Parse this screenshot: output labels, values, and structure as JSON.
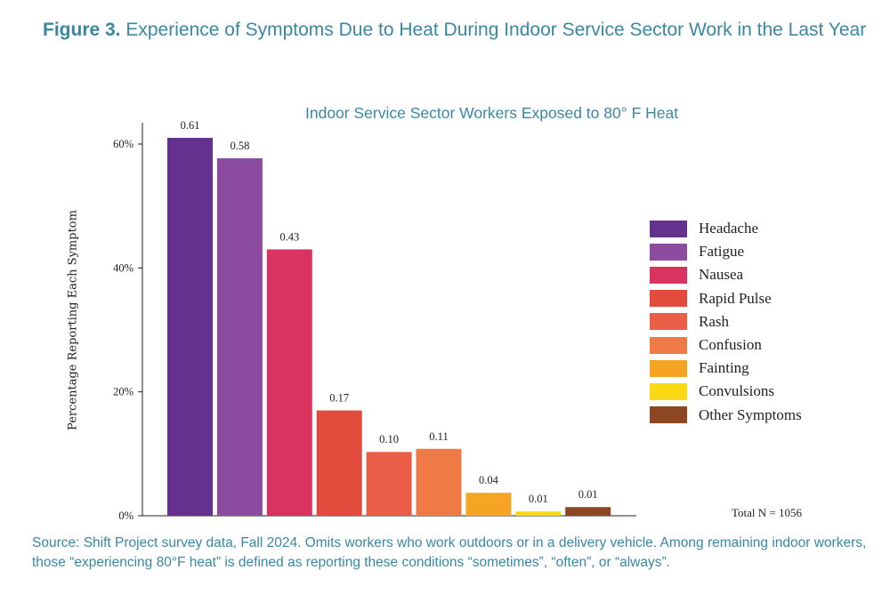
{
  "figure": {
    "title_lead": "Figure 3.",
    "title_rest": " Experience of Symptoms Due to Heat During Indoor Service Sector Work in the Last Year",
    "source_line1": "Source: Shift Project survey data, Fall 2024. Omits workers who work outdoors or in a delivery vehicle. Among remaining indoor workers,",
    "source_line2": "those “experiencing 80°F heat” is defined as reporting these conditions “sometimes”, “often”, or “always”."
  },
  "chart_data": {
    "type": "bar",
    "title": "Indoor Service Sector Workers Exposed to 80° F Heat",
    "xlabel": "",
    "ylabel": "Percentage Reporting Each Symptom",
    "ylim": [
      0,
      0.6
    ],
    "yticks": [
      {
        "value": 0,
        "label": "0%"
      },
      {
        "value": 0.2,
        "label": "20%"
      },
      {
        "value": 0.4,
        "label": "40%"
      },
      {
        "value": 0.6,
        "label": "60%"
      }
    ],
    "categories": [
      "Headache",
      "Fatigue",
      "Nausea",
      "Rapid Pulse",
      "Rash",
      "Confusion",
      "Fainting",
      "Convulsions",
      "Other Symptoms"
    ],
    "values": [
      0.61,
      0.577,
      0.43,
      0.17,
      0.103,
      0.108,
      0.037,
      0.007,
      0.014
    ],
    "value_labels": [
      "0.61",
      "0.58",
      "0.43",
      "0.17",
      "0.10",
      "0.11",
      "0.04",
      "0.01",
      "0.01"
    ],
    "colors": [
      "#65318f",
      "#8b4b9f",
      "#d8345f",
      "#e34c3d",
      "#ea5e48",
      "#f07a46",
      "#f5a523",
      "#fbd914",
      "#8e4522"
    ],
    "legend_position": "right",
    "grid": false,
    "note": "Total N = 1056"
  }
}
